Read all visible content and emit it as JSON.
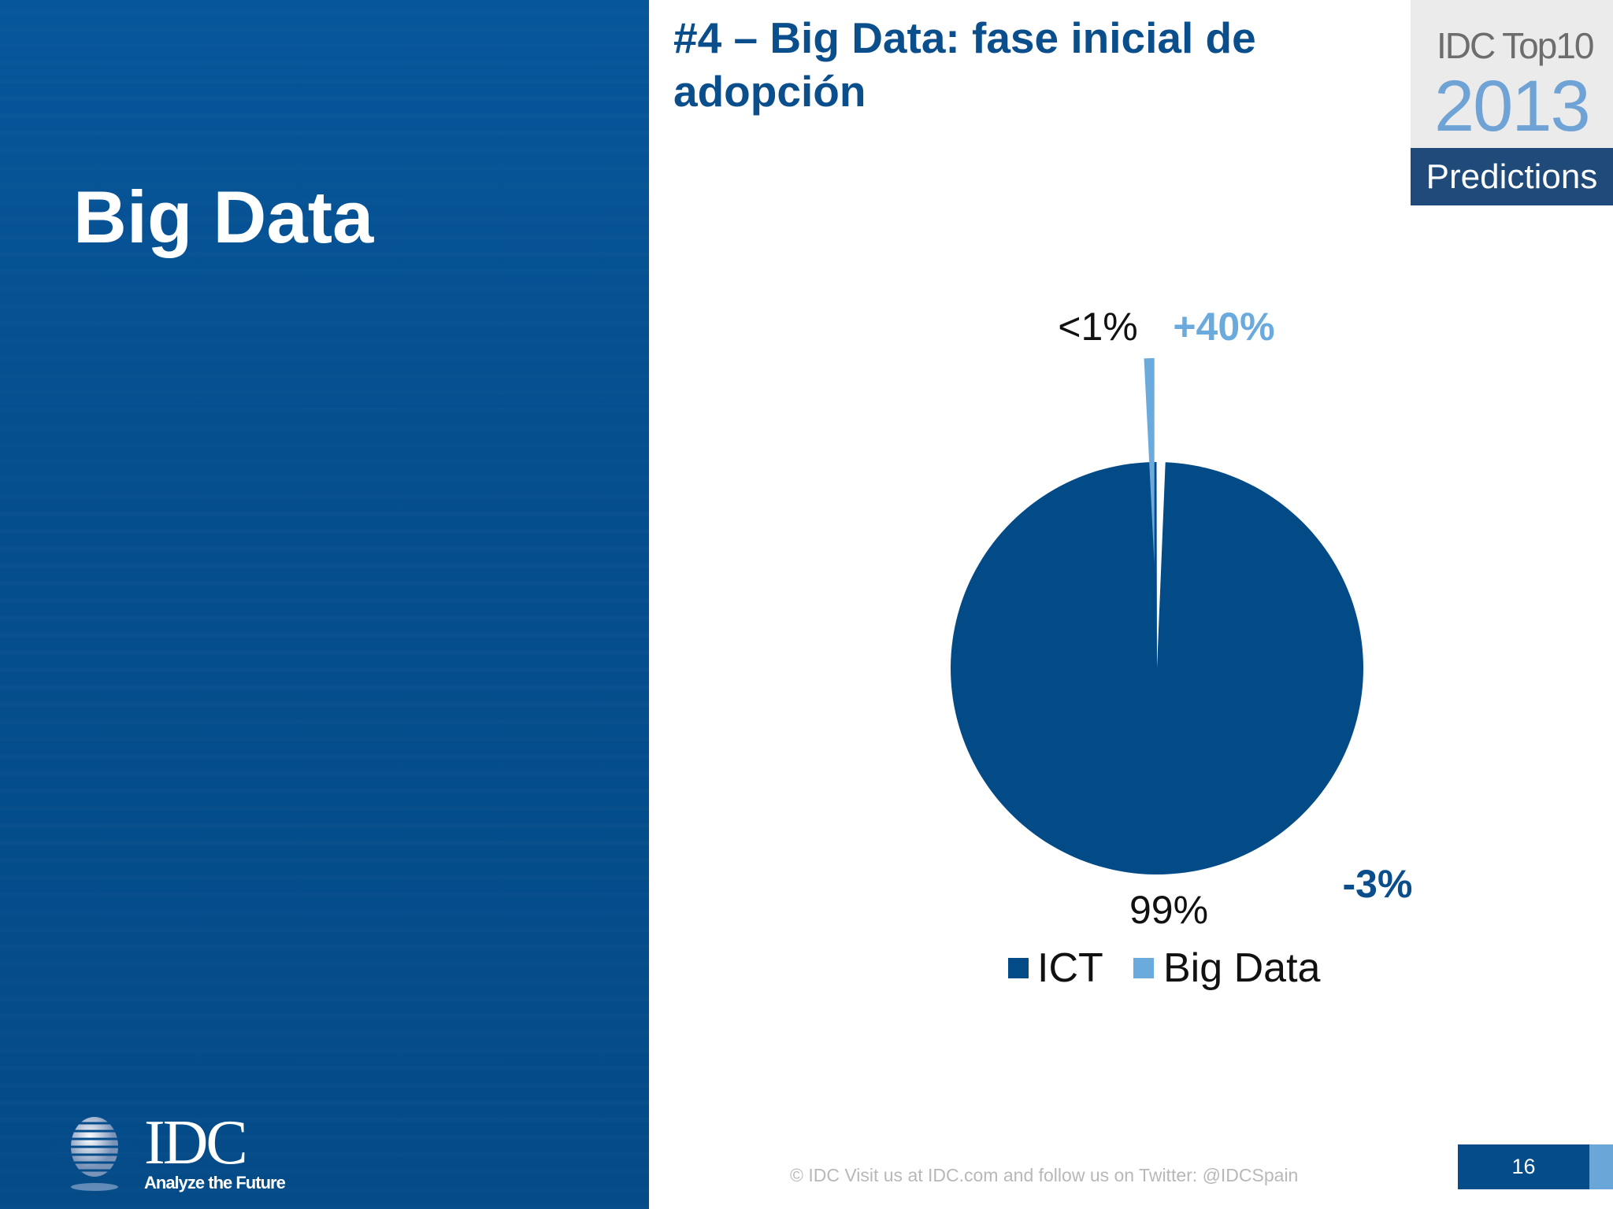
{
  "section_title": "Big Data",
  "heading": "#4 – Big Data: fase inicial de adopción",
  "badge": {
    "line1": "IDC Top10",
    "year": "2013",
    "line3": "Predictions"
  },
  "logo": {
    "name": "IDC",
    "tagline": "Analyze the Future"
  },
  "footer": {
    "text": "© IDC   Visit us at IDC.com and follow us on Twitter: @IDCSpain",
    "page": "16"
  },
  "colors": {
    "ict": "#034b87",
    "bigdata": "#6aaadc",
    "panel": "#044d8a"
  },
  "chart_data": {
    "type": "pie",
    "categories": [
      "ICT",
      "Big Data"
    ],
    "values": [
      99,
      1
    ],
    "data_labels": [
      "99%",
      "<1%"
    ],
    "growth_labels": [
      "-3%",
      "+40%"
    ],
    "legend": [
      "ICT",
      "Big Data"
    ],
    "legend_placement": "bottom",
    "exploded": [
      "Big Data"
    ]
  }
}
